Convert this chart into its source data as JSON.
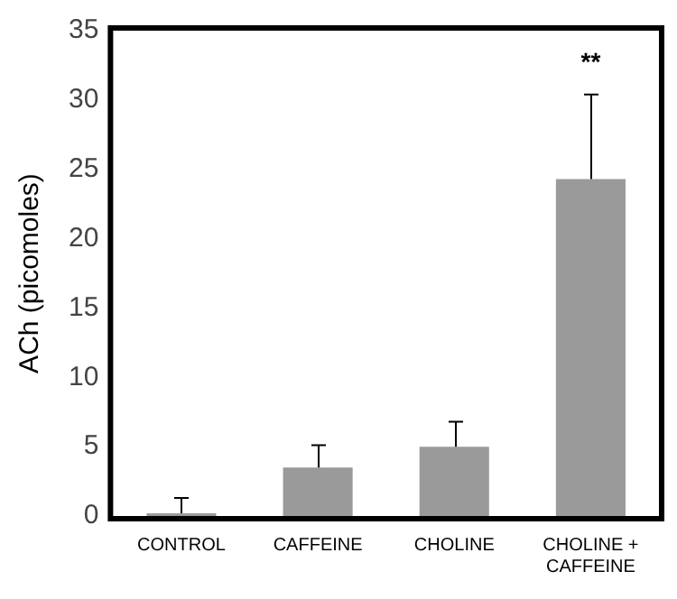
{
  "chart_data": {
    "type": "bar",
    "ylabel": "ACh (picomoles)",
    "categories": [
      "CONTROL",
      "CAFFEINE",
      "CHOLINE",
      "CHOLINE + CAFFEINE"
    ],
    "values": [
      0.2,
      3.5,
      5.0,
      24.3
    ],
    "errors": [
      [
        0.2,
        1.3
      ],
      [
        3.5,
        5.1
      ],
      [
        5.0,
        6.8
      ],
      [
        24.3,
        30.4
      ]
    ],
    "color": "#9a9a9a",
    "ylim": [
      0,
      35
    ],
    "yticks": [
      0,
      5,
      10,
      15,
      20,
      25,
      30,
      35
    ],
    "grid": false,
    "legend": false,
    "annotations": [
      "**"
    ]
  }
}
